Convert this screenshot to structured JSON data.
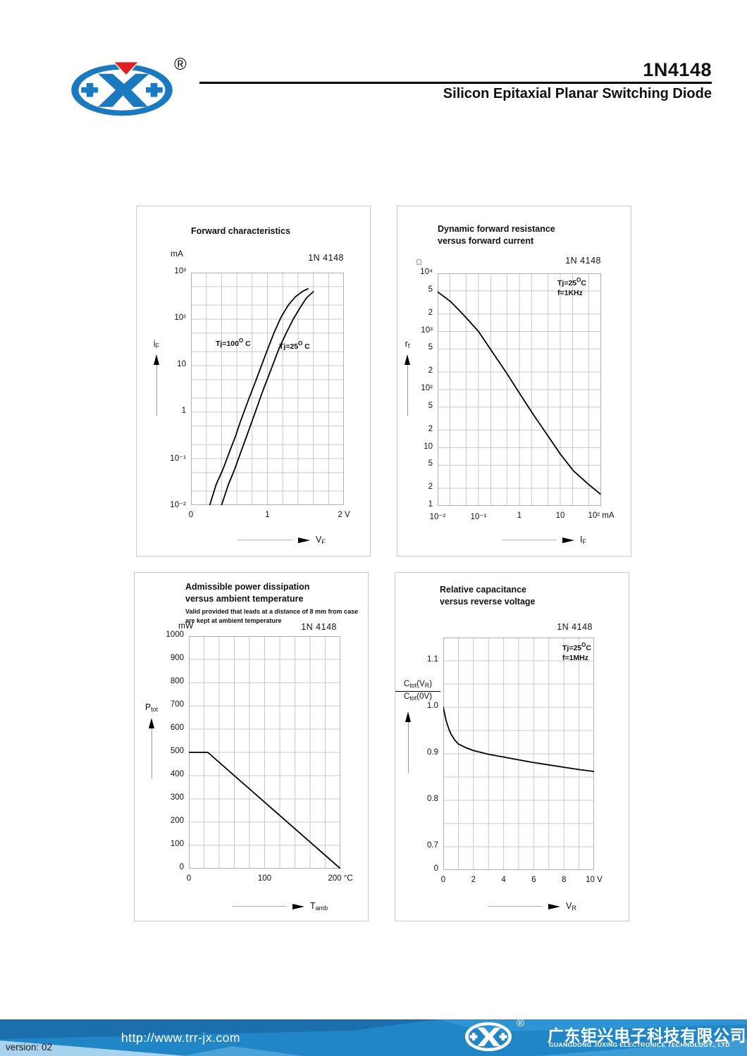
{
  "header": {
    "title": "1N4148",
    "subtitle": "Silicon Epitaxial Planar Switching Diode",
    "registered": "®"
  },
  "colors": {
    "logo_blue": "#1b79c0",
    "logo_red": "#e02020",
    "footer_blue": "#2186c6",
    "grid_gray": "#c9c9c9"
  },
  "chart_data": [
    {
      "type": "line",
      "title1": "Forward characteristics",
      "device": "1N 4148",
      "unit": "mA",
      "x": {
        "type": "linear",
        "min": 0,
        "max": 2,
        "gridStep": 0.2
      },
      "y": {
        "type": "log",
        "min": 0.01,
        "max": 1000
      },
      "xticks": [
        {
          "v": 0,
          "label": "0"
        },
        {
          "v": 1,
          "label": "1"
        },
        {
          "v": 2,
          "label": "2 V"
        }
      ],
      "yticks": [
        {
          "v": 1000,
          "label": "10³"
        },
        {
          "v": 100,
          "label": "10²"
        },
        {
          "v": 10,
          "label": "10"
        },
        {
          "v": 1,
          "label": "1"
        },
        {
          "v": 0.1,
          "label": "10⁻¹"
        },
        {
          "v": 0.01,
          "label": "10⁻²"
        }
      ],
      "xlabel": {
        "main": "V",
        "sub": "F"
      },
      "ylabel": {
        "main": "i",
        "sub": "F"
      },
      "series": [
        {
          "name": "Tj=100°C",
          "label": {
            "t1": "Tj=100",
            "sup": "O",
            "t2": " C"
          },
          "points": [
            [
              0.245,
              0.01
            ],
            [
              0.33,
              0.028
            ],
            [
              0.415,
              0.057
            ],
            [
              0.5,
              0.135
            ],
            [
              0.584,
              0.31
            ],
            [
              0.64,
              0.58
            ],
            [
              0.692,
              1.0
            ],
            [
              0.76,
              2.0
            ],
            [
              0.815,
              3.4
            ],
            [
              0.907,
              8.6
            ],
            [
              1.0,
              22
            ],
            [
              1.09,
              53
            ],
            [
              1.18,
              112
            ],
            [
              1.275,
              202
            ],
            [
              1.367,
              303
            ],
            [
              1.46,
              396
            ],
            [
              1.53,
              450
            ]
          ]
        },
        {
          "name": "Tj=25°C",
          "label": {
            "t1": "Tj=25",
            "sup": "O",
            "t2": " C"
          },
          "points": [
            [
              0.4,
              0.01
            ],
            [
              0.49,
              0.028
            ],
            [
              0.568,
              0.057
            ],
            [
              0.65,
              0.135
            ],
            [
              0.73,
              0.31
            ],
            [
              0.83,
              0.89
            ],
            [
              0.937,
              2.8
            ],
            [
              1.045,
              8.1
            ],
            [
              1.15,
              23
            ],
            [
              1.245,
              50
            ],
            [
              1.337,
              100
            ],
            [
              1.43,
              180
            ],
            [
              1.51,
              285
            ],
            [
              1.6,
              390
            ]
          ]
        }
      ]
    },
    {
      "type": "line",
      "title1": "Dynamic forward resistance",
      "title2": "versus forward current",
      "device": "1N 4148",
      "unit": "Ω",
      "annotation": {
        "t1": "Tj=25",
        "sup": "O",
        "t2": "C",
        "line2": "f=1KHz"
      },
      "x": {
        "type": "log",
        "min": 0.01,
        "max": 100
      },
      "y": {
        "type": "log",
        "min": 1,
        "max": 10000
      },
      "xticks": [
        {
          "v": 0.01,
          "label": "10⁻²"
        },
        {
          "v": 0.1,
          "label": "10⁻¹"
        },
        {
          "v": 1,
          "label": "1"
        },
        {
          "v": 10,
          "label": "10"
        },
        {
          "v": 100,
          "label": "10² mA"
        }
      ],
      "yticks": [
        {
          "v": 10000,
          "label": "10⁴"
        },
        {
          "v": 5000,
          "label": "5"
        },
        {
          "v": 2000,
          "label": "2"
        },
        {
          "v": 1000,
          "label": "10³"
        },
        {
          "v": 500,
          "label": "5"
        },
        {
          "v": 200,
          "label": "2"
        },
        {
          "v": 100,
          "label": "10²"
        },
        {
          "v": 50,
          "label": "5"
        },
        {
          "v": 20,
          "label": "2"
        },
        {
          "v": 10,
          "label": "10"
        },
        {
          "v": 5,
          "label": "5"
        },
        {
          "v": 2,
          "label": "2"
        },
        {
          "v": 1,
          "label": "1"
        }
      ],
      "xlabel": {
        "main": "I",
        "sub": "F"
      },
      "ylabel": {
        "main": "r",
        "sub": "f"
      },
      "series": [
        {
          "name": "rf",
          "points": [
            [
              0.01,
              4800
            ],
            [
              0.021,
              3250
            ],
            [
              0.047,
              1800
            ],
            [
              0.1,
              1000
            ],
            [
              0.21,
              460
            ],
            [
              0.47,
              200
            ],
            [
              1,
              87
            ],
            [
              2.2,
              37
            ],
            [
              4.7,
              17
            ],
            [
              10,
              7.8
            ],
            [
              21,
              4.0
            ],
            [
              47,
              2.4
            ],
            [
              95,
              1.6
            ]
          ]
        }
      ]
    },
    {
      "type": "line",
      "title1": "Admissible power dissipation",
      "title2": "versus ambient temperature",
      "sub1": "Valid provided that leads at a distance of 8 mm from case",
      "sub2": "are kept at ambient temperature",
      "device": "1N 4148",
      "unit": "mW",
      "x": {
        "type": "linear",
        "min": 0,
        "max": 200,
        "gridStep": 20
      },
      "y": {
        "type": "linear",
        "min": 0,
        "max": 1000,
        "gridStep": 100
      },
      "xticks": [
        {
          "v": 0,
          "label": "0"
        },
        {
          "v": 100,
          "label": "100"
        },
        {
          "v": 200,
          "label": "200 °C"
        }
      ],
      "yticks": [
        {
          "v": 1000,
          "label": "1000"
        },
        {
          "v": 900,
          "label": "900"
        },
        {
          "v": 800,
          "label": "800"
        },
        {
          "v": 700,
          "label": "700"
        },
        {
          "v": 600,
          "label": "600"
        },
        {
          "v": 500,
          "label": "500"
        },
        {
          "v": 400,
          "label": "400"
        },
        {
          "v": 300,
          "label": "300"
        },
        {
          "v": 200,
          "label": "200"
        },
        {
          "v": 100,
          "label": "100"
        },
        {
          "v": 0,
          "label": "0"
        }
      ],
      "xlabel": {
        "main": "T",
        "sub": "amb"
      },
      "ylabel": {
        "main": "P",
        "sub": "tot"
      },
      "series": [
        {
          "name": "Ptot",
          "points": [
            [
              0,
              500
            ],
            [
              25,
              500
            ],
            [
              200,
              0
            ]
          ]
        }
      ]
    },
    {
      "type": "line",
      "title1": "Relative capacitance",
      "title2": "versus reverse voltage",
      "device": "1N 4148",
      "annotation": {
        "t1": "Tj=25",
        "sup": "O",
        "t2": "C",
        "line2": "f=1MHz"
      },
      "x": {
        "type": "linear",
        "min": 0,
        "max": 10,
        "gridStep": 1
      },
      "y": {
        "type": "linear",
        "min": 0.65,
        "max": 1.15,
        "gridStep": 0.05
      },
      "xticks": [
        {
          "v": 0,
          "label": "0"
        },
        {
          "v": 2,
          "label": "2"
        },
        {
          "v": 4,
          "label": "4"
        },
        {
          "v": 6,
          "label": "6"
        },
        {
          "v": 8,
          "label": "8"
        },
        {
          "v": 10,
          "label": "10 V"
        }
      ],
      "yticks": [
        {
          "v": 1.1,
          "label": "1.1"
        },
        {
          "v": 1.0,
          "label": "1.0"
        },
        {
          "v": 0.9,
          "label": "0.9"
        },
        {
          "v": 0.8,
          "label": "0.8"
        },
        {
          "v": 0.7,
          "label": "0.7"
        },
        {
          "v": 0.65,
          "label": "0"
        }
      ],
      "xlabel": {
        "main": "V",
        "sub": "R"
      },
      "frac": {
        "n1": "C",
        "n1s": "tot",
        "n2": "(V",
        "n2s": "R",
        "n3": ")",
        "d1": "C",
        "d1s": "tot",
        "d2": "(0V)"
      },
      "series": [
        {
          "name": "Ctot(VR)/Ctot(0V)",
          "points": [
            [
              0,
              1.0
            ],
            [
              0.1,
              0.985
            ],
            [
              0.2,
              0.97
            ],
            [
              0.35,
              0.955
            ],
            [
              0.5,
              0.943
            ],
            [
              0.75,
              0.93
            ],
            [
              1,
              0.921
            ],
            [
              1.5,
              0.913
            ],
            [
              2,
              0.907
            ],
            [
              3,
              0.899
            ],
            [
              4,
              0.893
            ],
            [
              5,
              0.887
            ],
            [
              6,
              0.881
            ],
            [
              7,
              0.876
            ],
            [
              8,
              0.871
            ],
            [
              9,
              0.866
            ],
            [
              10,
              0.862
            ]
          ]
        }
      ]
    }
  ],
  "footer": {
    "url": "http://www.trr-jx.com",
    "registered": "®",
    "company_cn": "广东钜兴电子科技有限公司",
    "company_en": "GUANGDONG JUXING ELECTRONICE TECHNOLOGY., LTD",
    "version": "version: 02"
  }
}
